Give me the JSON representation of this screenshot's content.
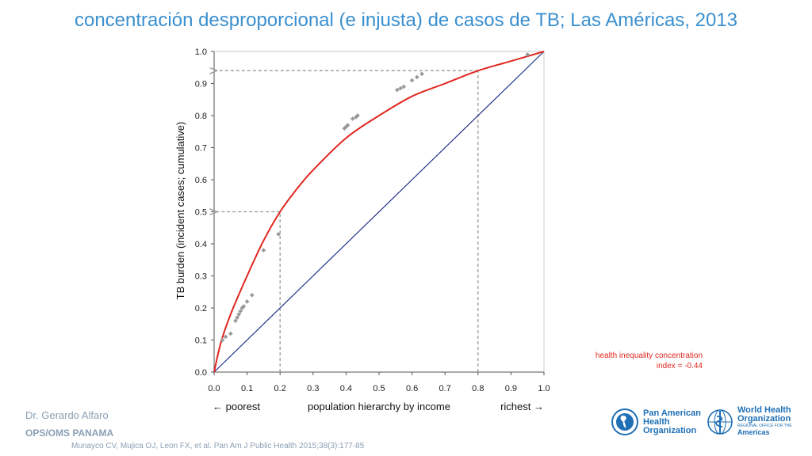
{
  "header": {
    "title": "concentración desproporcional (e injusta) de casos de TB; Las Américas, 2013"
  },
  "chart_data": {
    "type": "line",
    "title": "concentración desproporcional (e injusta) de casos de TB; Las Américas, 2013",
    "xlabel": "population hierarchy by income",
    "ylabel": "TB burden (incident cases; cumulative)",
    "x_left_label": "← poorest",
    "x_right_label": "richest →",
    "xlim": [
      0,
      1
    ],
    "ylim": [
      0,
      1
    ],
    "xticks": [
      "0.0",
      "0.1",
      "0.2",
      "0.3",
      "0.4",
      "0.5",
      "0.6",
      "0.7",
      "0.8",
      "0.9",
      "1.0"
    ],
    "yticks": [
      "0.0",
      "0.1",
      "0.2",
      "0.3",
      "0.4",
      "0.5",
      "0.6",
      "0.7",
      "0.8",
      "0.9",
      "1.0"
    ],
    "grid": false,
    "series": [
      {
        "name": "concentration curve",
        "color": "#e0261f",
        "x": [
          0,
          0.02,
          0.05,
          0.1,
          0.15,
          0.2,
          0.25,
          0.3,
          0.4,
          0.5,
          0.6,
          0.7,
          0.8,
          0.9,
          1.0
        ],
        "y": [
          0,
          0.09,
          0.18,
          0.3,
          0.41,
          0.5,
          0.57,
          0.63,
          0.73,
          0.8,
          0.86,
          0.9,
          0.94,
          0.97,
          1.0
        ]
      },
      {
        "name": "equality line",
        "color": "#1f2f86",
        "x": [
          0,
          1
        ],
        "y": [
          0,
          1
        ]
      },
      {
        "name": "countries",
        "type": "scatter",
        "color": "#999999",
        "x": [
          0.025,
          0.035,
          0.05,
          0.065,
          0.07,
          0.075,
          0.08,
          0.085,
          0.09,
          0.1,
          0.115,
          0.15,
          0.195,
          0.395,
          0.4,
          0.405,
          0.42,
          0.43,
          0.435,
          0.555,
          0.565,
          0.575,
          0.6,
          0.615,
          0.63,
          0.95
        ],
        "y": [
          0.1,
          0.11,
          0.12,
          0.16,
          0.17,
          0.18,
          0.19,
          0.2,
          0.205,
          0.22,
          0.24,
          0.38,
          0.43,
          0.76,
          0.765,
          0.77,
          0.79,
          0.795,
          0.8,
          0.88,
          0.885,
          0.89,
          0.91,
          0.92,
          0.93,
          0.99
        ]
      }
    ],
    "reference_lines": [
      {
        "x": 0.2,
        "y": 0.5
      },
      {
        "x": 0.8,
        "y": 0.94
      }
    ],
    "annotation": {
      "line1": "health inequality concentration",
      "line2": "index = -0.44",
      "color": "#e0261f"
    }
  },
  "footer": {
    "author": "Dr. Gerardo Alfaro",
    "org": "OPS/OMS PANAMA",
    "citation": "Munayco CV, Mujica OJ, Leon FX, et al. Pan Am J Public Health 2015;38(3):177-85"
  },
  "logos": {
    "paho_lines": [
      "Pan American",
      "Health",
      "Organization"
    ],
    "who_lines": [
      "World Health",
      "Organization"
    ],
    "who_sub": "REGIONAL OFFICE FOR THE",
    "who_region": "Americas",
    "color": "#1e6fb5"
  }
}
